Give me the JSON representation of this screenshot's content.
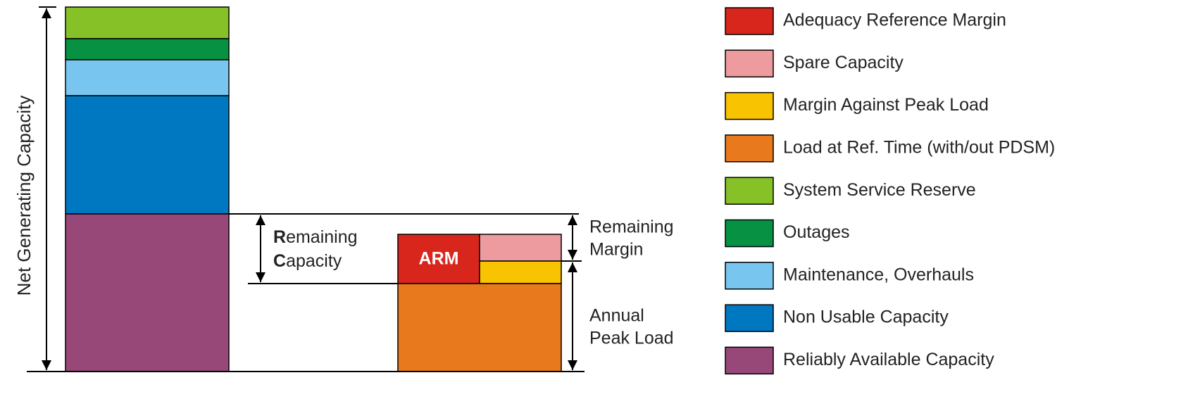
{
  "diagram": {
    "axis_label": "Net Generating Capacity",
    "remaining_capacity": [
      {
        "bold": "R",
        "rest": "emaining"
      },
      {
        "bold": "C",
        "rest": "apacity"
      }
    ],
    "arm_label": "ARM",
    "remaining_margin": [
      "Remaining",
      "Margin"
    ],
    "annual_peak_load": [
      "Annual",
      "Peak Load"
    ]
  },
  "legend": {
    "items": [
      {
        "label": "Adequacy Reference Margin",
        "color": "#d9261c"
      },
      {
        "label": "Spare Capacity",
        "color": "#ee9ba0"
      },
      {
        "label": "Margin Against Peak Load",
        "color": "#f8c300"
      },
      {
        "label": "Load at Ref. Time (with/out PDSM)",
        "color": "#e8791d"
      },
      {
        "label": "System Service Reserve",
        "color": "#86c227"
      },
      {
        "label": "Outages",
        "color": "#079142"
      },
      {
        "label": "Maintenance, Overhauls",
        "color": "#78c6ef"
      },
      {
        "label": "Non Usable Capacity",
        "color": "#0078c1"
      },
      {
        "label": "Reliably Available Capacity",
        "color": "#974878"
      }
    ]
  }
}
